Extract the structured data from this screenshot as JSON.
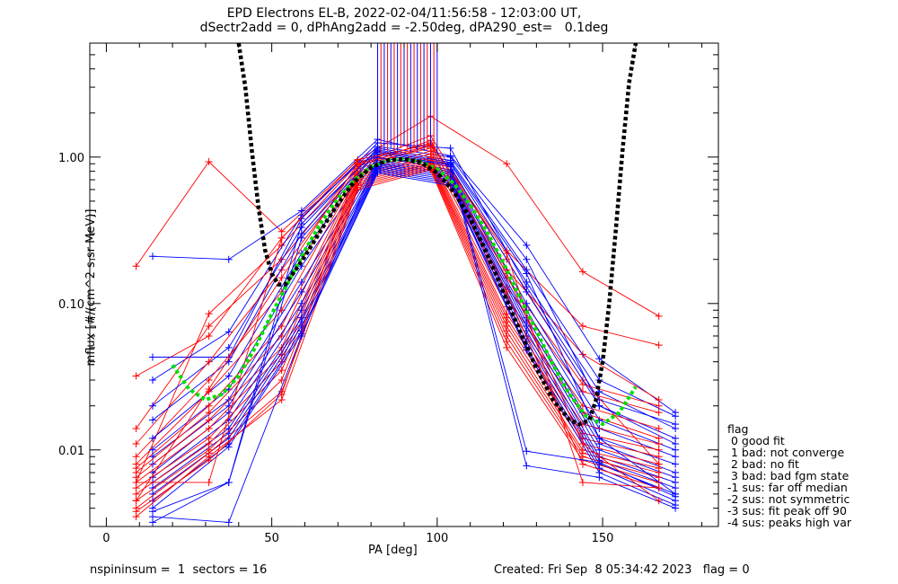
{
  "header": {
    "title_line1": "EPD Electrons EL-B, 2022-02-04/11:56:58 - 12:03:00 UT,",
    "title_line2": "dSectr2add = 0, dPhAng2add = -2.50deg, dPA290_est=   0.1deg"
  },
  "footer": {
    "left": "nspininsum =  1  sectors = 16",
    "right": "Created: Fri Sep  8 05:34:42 2023   flag = 0"
  },
  "flag_legend": [
    "flag",
    " 0 good fit",
    " 1 bad: not converge",
    " 2 bad: no fit",
    " 3 bad: bad fgm state",
    "-1 sus: far off median",
    "-2 sus: not symmetric",
    "-3 sus: fit peak off 90",
    "-4 sus: peaks high var"
  ],
  "colors": {
    "series_a": "#ff0000",
    "series_b": "#0000ff",
    "fit": "#00e000",
    "model": "#000000",
    "axes": "#000000"
  },
  "chart_data": {
    "type": "line",
    "xlabel": "PA [deg]",
    "ylabel": "mflux [#/(cm^2 s sr MeV)]",
    "x_scale": "linear",
    "y_scale": "log",
    "xlim": [
      -5,
      185
    ],
    "ylim": [
      0.003,
      6
    ],
    "xticks": [
      0,
      50,
      100,
      150
    ],
    "xtick_labels": [
      "0",
      "50",
      "100",
      "150"
    ],
    "yticks": [
      0.01,
      0.1,
      1.0
    ],
    "ytick_labels": [
      "0.01",
      "0.10",
      "1.00"
    ],
    "grid": false,
    "legend": "right",
    "series": [
      {
        "color": "red",
        "x": [
          9,
          31,
          53,
          76,
          98,
          121,
          144,
          167
        ],
        "y": [
          0.18,
          0.93,
          0.31,
          0.95,
          1.9,
          0.9,
          0.165,
          0.082
        ]
      },
      {
        "color": "blue",
        "x": [
          14,
          37,
          59,
          82,
          104,
          127,
          149,
          172
        ],
        "y": [
          0.21,
          0.2,
          0.43,
          1.32,
          1.02,
          0.25,
          0.042,
          0.018
        ]
      },
      {
        "color": "red",
        "x": [
          9,
          31,
          53,
          76,
          98,
          121,
          144,
          167
        ],
        "y": [
          0.032,
          0.06,
          0.28,
          0.92,
          1.25,
          0.23,
          0.07,
          0.052
        ]
      },
      {
        "color": "blue",
        "x": [
          14,
          37,
          59,
          82,
          104,
          127,
          149,
          172
        ],
        "y": [
          0.043,
          0.043,
          0.38,
          1.25,
          1.15,
          0.13,
          0.022,
          0.015
        ]
      },
      {
        "color": "red",
        "x": [
          9,
          31,
          53,
          76,
          98,
          121,
          144,
          167
        ],
        "y": [
          0.006,
          0.085,
          0.25,
          0.9,
          1.4,
          0.2,
          0.03,
          0.008
        ]
      },
      {
        "color": "blue",
        "x": [
          14,
          37,
          59,
          82,
          104,
          127,
          149,
          172
        ],
        "y": [
          0.03,
          0.064,
          0.4,
          1.18,
          1.0,
          0.2,
          0.02,
          0.012
        ]
      },
      {
        "color": "red",
        "x": [
          9,
          31,
          53,
          76,
          98,
          121,
          144,
          167
        ],
        "y": [
          0.014,
          0.07,
          0.2,
          0.86,
          1.3,
          0.17,
          0.045,
          0.022
        ]
      },
      {
        "color": "blue",
        "x": [
          14,
          37,
          59,
          82,
          104,
          127,
          149,
          172
        ],
        "y": [
          0.02,
          0.05,
          0.33,
          1.15,
          0.95,
          0.17,
          0.03,
          0.017
        ]
      },
      {
        "color": "red",
        "x": [
          9,
          31,
          53,
          76,
          98,
          121,
          144,
          167
        ],
        "y": [
          0.011,
          0.04,
          0.17,
          0.83,
          1.2,
          0.15,
          0.028,
          0.02
        ]
      },
      {
        "color": "blue",
        "x": [
          14,
          37,
          59,
          82,
          104,
          127,
          149,
          172
        ],
        "y": [
          0.016,
          0.04,
          0.3,
          1.1,
          0.9,
          0.14,
          0.025,
          0.014
        ]
      },
      {
        "color": "red",
        "x": [
          9,
          31,
          53,
          76,
          98,
          121,
          144,
          167
        ],
        "y": [
          0.009,
          0.03,
          0.12,
          0.8,
          1.1,
          0.13,
          0.025,
          0.018
        ]
      },
      {
        "color": "blue",
        "x": [
          14,
          37,
          59,
          82,
          104,
          127,
          149,
          172
        ],
        "y": [
          0.012,
          0.032,
          0.22,
          1.05,
          0.86,
          0.12,
          0.02,
          0.011
        ]
      },
      {
        "color": "red",
        "x": [
          9,
          31,
          53,
          76,
          98,
          121,
          144,
          167
        ],
        "y": [
          0.008,
          0.025,
          0.09,
          0.78,
          1.05,
          0.11,
          0.02,
          0.014
        ]
      },
      {
        "color": "blue",
        "x": [
          14,
          37,
          59,
          82,
          104,
          127,
          149,
          172
        ],
        "y": [
          0.01,
          0.026,
          0.18,
          1.0,
          0.82,
          0.1,
          0.016,
          0.01
        ]
      },
      {
        "color": "red",
        "x": [
          9,
          31,
          53,
          76,
          98,
          121,
          144,
          167
        ],
        "y": [
          0.0075,
          0.02,
          0.07,
          0.76,
          1.0,
          0.095,
          0.018,
          0.012
        ]
      },
      {
        "color": "blue",
        "x": [
          14,
          37,
          59,
          82,
          104,
          127,
          149,
          172
        ],
        "y": [
          0.009,
          0.022,
          0.14,
          0.95,
          0.8,
          0.09,
          0.014,
          0.009
        ]
      },
      {
        "color": "red",
        "x": [
          9,
          31,
          53,
          76,
          98,
          121,
          144,
          167
        ],
        "y": [
          0.007,
          0.018,
          0.06,
          0.74,
          0.98,
          0.085,
          0.015,
          0.011
        ]
      },
      {
        "color": "blue",
        "x": [
          14,
          37,
          59,
          82,
          104,
          127,
          149,
          172
        ],
        "y": [
          0.008,
          0.02,
          0.12,
          0.92,
          0.78,
          0.08,
          0.012,
          0.008
        ]
      },
      {
        "color": "red",
        "x": [
          9,
          31,
          53,
          76,
          98,
          121,
          144,
          167
        ],
        "y": [
          0.0065,
          0.016,
          0.05,
          0.72,
          0.95,
          0.08,
          0.013,
          0.01
        ]
      },
      {
        "color": "blue",
        "x": [
          14,
          37,
          59,
          82,
          104,
          127,
          149,
          172
        ],
        "y": [
          0.007,
          0.018,
          0.1,
          0.9,
          0.76,
          0.075,
          0.011,
          0.007
        ]
      },
      {
        "color": "red",
        "x": [
          9,
          31,
          53,
          76,
          98,
          121,
          144,
          167
        ],
        "y": [
          0.006,
          0.014,
          0.045,
          0.7,
          0.92,
          0.075,
          0.012,
          0.009
        ]
      },
      {
        "color": "blue",
        "x": [
          14,
          37,
          59,
          82,
          104,
          127,
          149,
          172
        ],
        "y": [
          0.0065,
          0.016,
          0.09,
          0.88,
          0.74,
          0.07,
          0.01,
          0.0065
        ]
      },
      {
        "color": "red",
        "x": [
          9,
          31,
          53,
          76,
          98,
          121,
          144,
          167
        ],
        "y": [
          0.0055,
          0.012,
          0.04,
          0.68,
          0.9,
          0.07,
          0.011,
          0.008
        ]
      },
      {
        "color": "blue",
        "x": [
          14,
          37,
          59,
          82,
          104,
          127,
          149,
          172
        ],
        "y": [
          0.006,
          0.014,
          0.08,
          0.86,
          0.72,
          0.065,
          0.009,
          0.006
        ]
      },
      {
        "color": "red",
        "x": [
          9,
          31,
          53,
          76,
          98,
          121,
          144,
          167
        ],
        "y": [
          0.005,
          0.011,
          0.035,
          0.66,
          0.88,
          0.065,
          0.01,
          0.0075
        ]
      },
      {
        "color": "blue",
        "x": [
          14,
          37,
          59,
          82,
          104,
          127,
          149,
          172
        ],
        "y": [
          0.0055,
          0.013,
          0.075,
          0.84,
          0.7,
          0.06,
          0.0085,
          0.0055
        ]
      },
      {
        "color": "red",
        "x": [
          9,
          31,
          53,
          76,
          98,
          121,
          144,
          167
        ],
        "y": [
          0.0045,
          0.01,
          0.03,
          0.64,
          0.86,
          0.06,
          0.0095,
          0.007
        ]
      },
      {
        "color": "blue",
        "x": [
          14,
          37,
          59,
          82,
          104,
          127,
          149,
          172
        ],
        "y": [
          0.005,
          0.012,
          0.07,
          0.82,
          0.68,
          0.055,
          0.008,
          0.005
        ]
      },
      {
        "color": "red",
        "x": [
          9,
          31,
          53,
          76,
          98,
          121,
          144,
          167
        ],
        "y": [
          0.004,
          0.0095,
          0.025,
          0.62,
          0.84,
          0.055,
          0.009,
          0.0065
        ]
      },
      {
        "color": "blue",
        "x": [
          14,
          37,
          59,
          82,
          104,
          127,
          149,
          172
        ],
        "y": [
          0.0045,
          0.011,
          0.065,
          0.8,
          0.66,
          0.05,
          0.0075,
          0.0045
        ]
      },
      {
        "color": "red",
        "x": [
          9,
          31,
          53,
          76,
          98,
          121,
          144,
          167
        ],
        "y": [
          0.0035,
          0.009,
          0.022,
          0.6,
          0.82,
          0.05,
          0.0085,
          0.006
        ]
      },
      {
        "color": "blue",
        "x": [
          14,
          37,
          59,
          82,
          104,
          127,
          149,
          172
        ],
        "y": [
          0.004,
          0.0105,
          0.062,
          0.78,
          0.64,
          0.048,
          0.007,
          0.0042
        ]
      },
      {
        "color": "red",
        "x": [
          9,
          31,
          53,
          76,
          98,
          121,
          144,
          167
        ],
        "y": [
          0.0038,
          0.0085,
          0.024,
          0.88,
          1.15,
          0.12,
          0.008,
          0.0055
        ]
      },
      {
        "color": "blue",
        "x": [
          14,
          37,
          59,
          82,
          104,
          127,
          149,
          172
        ],
        "y": [
          0.0035,
          0.0032,
          0.06,
          0.98,
          0.9,
          0.0098,
          0.0082,
          0.0048
        ]
      },
      {
        "color": "blue",
        "x": [
          14,
          37,
          59,
          82,
          104,
          127,
          149,
          172
        ],
        "y": [
          0.0032,
          0.006,
          0.28,
          1.08,
          0.88,
          0.0078,
          0.0065,
          0.004
        ]
      },
      {
        "color": "red",
        "x": [
          9,
          31,
          53,
          76,
          98,
          121,
          144,
          167
        ],
        "y": [
          0.006,
          0.006,
          0.28,
          0.96,
          1.22,
          0.22,
          0.006,
          0.0055
        ]
      },
      {
        "color": "blue",
        "x": [
          14,
          37,
          59,
          82,
          104,
          127,
          149,
          172
        ],
        "y": [
          0.0038,
          0.006,
          0.35,
          1.12,
          0.92,
          0.16,
          0.012,
          0.005
        ]
      },
      {
        "color": "red",
        "x": [
          9,
          31,
          53,
          76,
          98,
          121,
          144,
          167
        ],
        "y": [
          0.0045,
          0.026,
          0.15,
          0.9,
          1.2,
          0.16,
          0.011,
          0.0045
        ]
      }
    ],
    "fit_series": {
      "name": "",
      "color": "green",
      "x": [
        20,
        25,
        30,
        35,
        40,
        45,
        50,
        55,
        60,
        65,
        70,
        75,
        80,
        85,
        90,
        95,
        100,
        105,
        110,
        115,
        120,
        125,
        130,
        135,
        140,
        145,
        150,
        155,
        160
      ],
      "y": [
        0.038,
        0.026,
        0.022,
        0.024,
        0.032,
        0.05,
        0.085,
        0.14,
        0.23,
        0.36,
        0.52,
        0.7,
        0.86,
        0.95,
        0.97,
        0.93,
        0.83,
        0.66,
        0.47,
        0.31,
        0.19,
        0.11,
        0.065,
        0.038,
        0.024,
        0.017,
        0.015,
        0.018,
        0.027
      ]
    },
    "model_series": {
      "name": "",
      "color": "black",
      "x": [
        40,
        42,
        44,
        46,
        48,
        50,
        52,
        54,
        56,
        60,
        65,
        70,
        75,
        80,
        85,
        90,
        95,
        100,
        105,
        110,
        115,
        120,
        125,
        130,
        135,
        140,
        143,
        146,
        148,
        150,
        152,
        154,
        156,
        158,
        160
      ],
      "y": [
        6,
        3.0,
        1.1,
        0.45,
        0.23,
        0.16,
        0.135,
        0.135,
        0.155,
        0.21,
        0.32,
        0.48,
        0.68,
        0.85,
        0.95,
        0.97,
        0.92,
        0.78,
        0.58,
        0.38,
        0.22,
        0.12,
        0.065,
        0.036,
        0.022,
        0.016,
        0.015,
        0.016,
        0.022,
        0.04,
        0.1,
        0.32,
        1.1,
        3.2,
        6
      ]
    },
    "vertical_lines": {
      "x": [
        82,
        83,
        84,
        85,
        86,
        87,
        88,
        89,
        90,
        91,
        92,
        93,
        94,
        95,
        96,
        97,
        98,
        99,
        100
      ],
      "y_from": [
        1.0,
        1.05,
        1.1,
        1.1,
        1.15,
        1.1,
        1.1,
        1.15,
        1.2,
        1.15,
        1.1,
        1.15,
        1.1,
        1.2,
        1.1,
        1.15,
        1.2,
        1.1,
        1.05
      ],
      "y_to": 6
    }
  }
}
